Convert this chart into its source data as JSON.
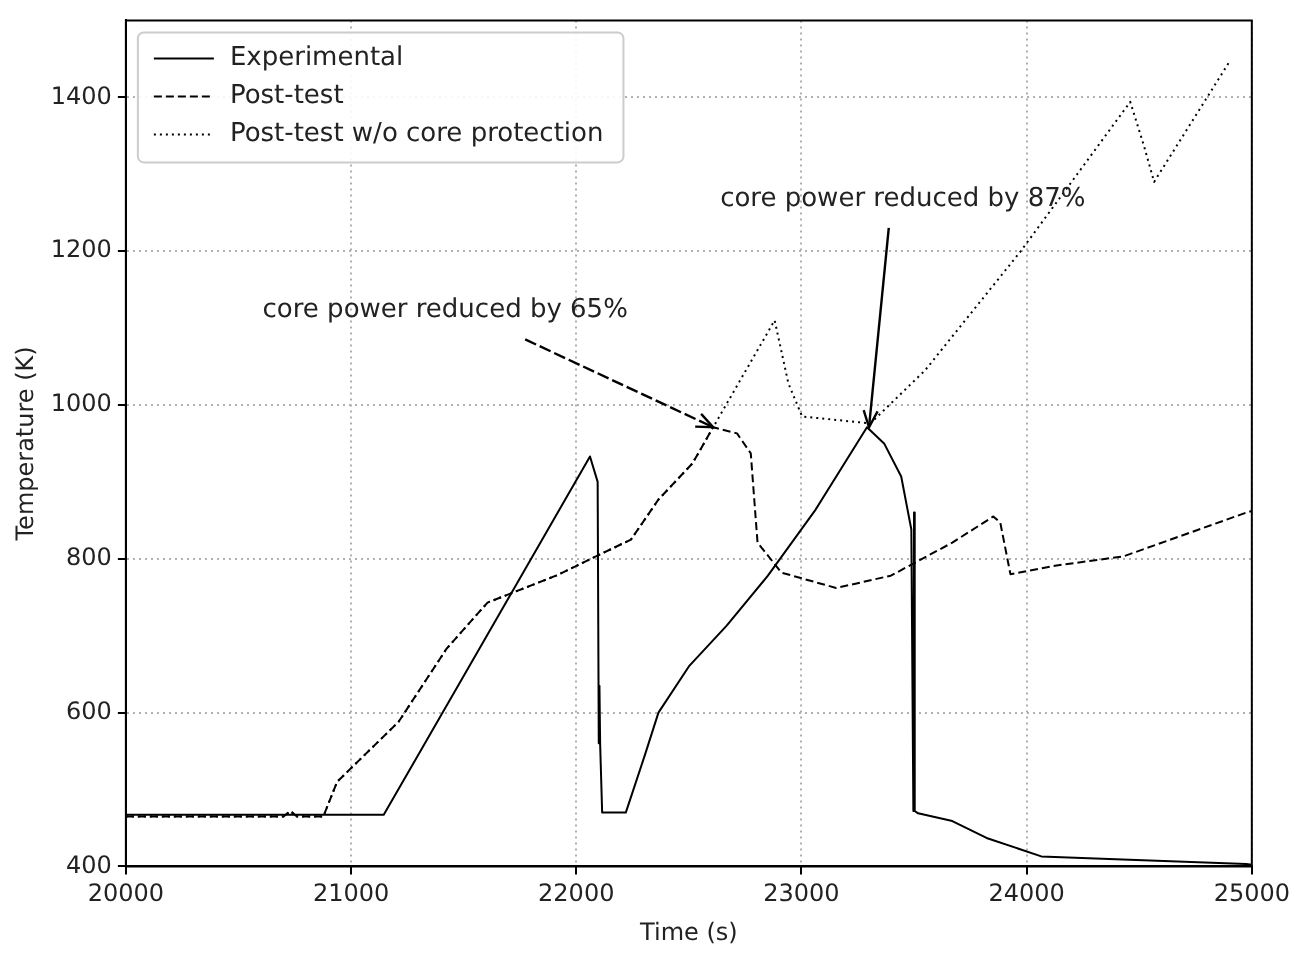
{
  "chart_data": {
    "type": "line",
    "xlabel": "Time (s)",
    "ylabel": "Temperature (K)",
    "xlim": [
      20000,
      25000
    ],
    "xticks": [
      20000,
      21000,
      22000,
      23000,
      24000,
      25000
    ],
    "ylim": [
      400,
      1500
    ],
    "yticks": [
      400,
      600,
      800,
      1000,
      1200,
      1400
    ],
    "grid": true,
    "legend": "top left",
    "marker": "none",
    "series": [
      {
        "name": "Experimental",
        "color": "#000000",
        "line_style": "solid",
        "x": [
          20000,
          21145,
          22061,
          22095,
          22100,
          22103,
          22106,
          22115,
          22220,
          22305,
          22365,
          22500,
          22668,
          22851,
          23063,
          23291,
          23367,
          23443,
          23488,
          23497,
          23500,
          23503,
          23518,
          23670,
          23822,
          24065,
          24426,
          24975,
          25000
        ],
        "values": [
          467,
          467,
          933,
          900,
          560,
          635,
          560,
          470,
          470,
          545,
          600,
          660,
          713,
          778,
          864,
          971,
          950,
          907,
          838,
          472,
          860,
          472,
          469,
          459,
          437,
          413,
          409,
          403,
          402
        ]
      },
      {
        "name": "Post-test",
        "color": "#000000",
        "line_style": "dashed",
        "x": [
          20000,
          20700,
          20730,
          20760,
          20877,
          20938,
          21211,
          21424,
          21606,
          21910,
          22243,
          22365,
          22516,
          22608,
          22714,
          22775,
          22805,
          22911,
          23154,
          23397,
          23670,
          23852,
          23883,
          23928,
          24126,
          24429,
          24975,
          25000
        ],
        "values": [
          465,
          465,
          472,
          465,
          465,
          510,
          588,
          683,
          743,
          778,
          825,
          877,
          924,
          971,
          963,
          937,
          821,
          782,
          762,
          778,
          821,
          855,
          847,
          780,
          791,
          803,
          860,
          862
        ]
      },
      {
        "name": "Post-test w/o core protection",
        "color": "#000000",
        "line_style": "dotted",
        "x": [
          20000,
          20700,
          20730,
          20760,
          20877,
          20938,
          21211,
          21424,
          21606,
          21910,
          22243,
          22365,
          22516,
          22608,
          22881,
          22942,
          23003,
          23306,
          23549,
          23974,
          24460,
          24520,
          24566,
          24900
        ],
        "values": [
          465,
          465,
          472,
          465,
          465,
          510,
          588,
          683,
          743,
          778,
          825,
          877,
          924,
          971,
          1110,
          1028,
          985,
          976,
          1045,
          1200,
          1394,
          1338,
          1290,
          1446
        ]
      }
    ],
    "annotations": [
      {
        "text": "core power reduced by 65%",
        "x": 22608,
        "y": 971
      },
      {
        "text": "core power reduced by 87%",
        "x": 23300,
        "y": 971
      }
    ]
  }
}
